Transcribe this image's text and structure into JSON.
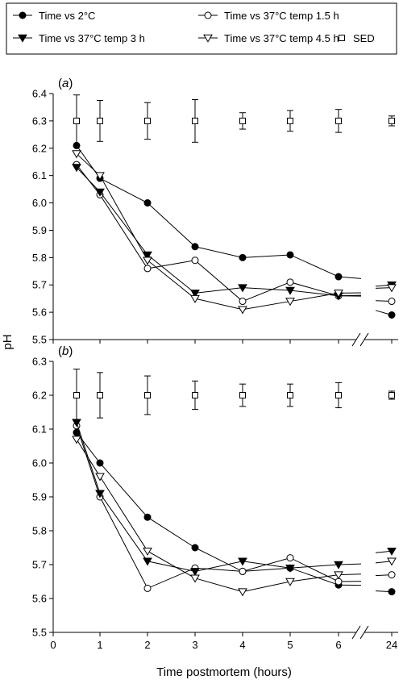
{
  "figure": {
    "ylabel": "pH",
    "xlabel": "Time postmortem (hours)"
  },
  "legend": {
    "entries": [
      {
        "label": "Time vs 2°C",
        "marker": "filled-circle"
      },
      {
        "label": "Time vs 37°C temp 1.5 h",
        "marker": "open-circle"
      },
      {
        "label": "Time vs 37°C temp 3 h",
        "marker": "filled-triangle-down"
      },
      {
        "label": "Time vs 37°C temp 4.5 h",
        "marker": "open-triangle-down"
      },
      {
        "label": "SED",
        "marker": "open-square"
      }
    ]
  },
  "colors": {
    "ink": "#000000",
    "background": "#ffffff"
  },
  "chart_data": [
    {
      "type": "line",
      "panel_label": "a",
      "x_ticks": [
        "0",
        "1",
        "2",
        "3",
        "4",
        "5",
        "6",
        "24"
      ],
      "x_axis_break": "between 6 and 24 hours",
      "ylim": [
        5.5,
        6.4
      ],
      "yticks": [
        "5.5",
        "5.6",
        "5.7",
        "5.8",
        "5.9",
        "6.0",
        "6.1",
        "6.2",
        "6.3",
        "6.4"
      ],
      "grid": false,
      "legend_placement": "top",
      "series": [
        {
          "name": "Time vs 2°C",
          "marker": "filled-circle",
          "points": [
            [
              0.5,
              6.21
            ],
            [
              1,
              6.09
            ],
            [
              2,
              6.0
            ],
            [
              3,
              5.84
            ],
            [
              4,
              5.8
            ],
            [
              5,
              5.81
            ],
            [
              6,
              5.73
            ],
            [
              24,
              5.59
            ]
          ]
        },
        {
          "name": "Time vs 37°C temp 1.5 h",
          "marker": "open-circle",
          "points": [
            [
              0.5,
              6.14
            ],
            [
              1,
              6.03
            ],
            [
              2,
              5.76
            ],
            [
              3,
              5.79
            ],
            [
              4,
              5.64
            ],
            [
              5,
              5.71
            ],
            [
              6,
              5.66
            ],
            [
              24,
              5.64
            ]
          ]
        },
        {
          "name": "Time vs 37°C temp 3 h",
          "marker": "filled-triangle-down",
          "points": [
            [
              0.5,
              6.13
            ],
            [
              1,
              6.04
            ],
            [
              2,
              5.81
            ],
            [
              3,
              5.67
            ],
            [
              4,
              5.69
            ],
            [
              5,
              5.68
            ],
            [
              6,
              5.66
            ],
            [
              24,
              5.7
            ]
          ]
        },
        {
          "name": "Time vs 37°C temp 4.5 h",
          "marker": "open-triangle-down",
          "points": [
            [
              0.5,
              6.18
            ],
            [
              1,
              6.1
            ],
            [
              2,
              5.79
            ],
            [
              3,
              5.65
            ],
            [
              4,
              5.61
            ],
            [
              5,
              5.64
            ],
            [
              6,
              5.67
            ],
            [
              24,
              5.69
            ]
          ]
        },
        {
          "name": "SED",
          "marker": "open-square",
          "error_bars": true,
          "points": [
            [
              0.5,
              6.3
            ],
            [
              1,
              6.3
            ],
            [
              2,
              6.3
            ],
            [
              3,
              6.3
            ],
            [
              4,
              6.3
            ],
            [
              5,
              6.3
            ],
            [
              6,
              6.3
            ],
            [
              24,
              6.3
            ]
          ],
          "errors": [
            0.095,
            0.075,
            0.067,
            0.078,
            0.03,
            0.038,
            0.042,
            0.018
          ]
        }
      ]
    },
    {
      "type": "line",
      "panel_label": "b",
      "x_ticks": [
        "0",
        "1",
        "2",
        "3",
        "4",
        "5",
        "6",
        "24"
      ],
      "x_axis_break": "between 6 and 24 hours",
      "ylim": [
        5.5,
        6.3
      ],
      "yticks": [
        "5.5",
        "5.6",
        "5.7",
        "5.8",
        "5.9",
        "6.0",
        "6.1",
        "6.2",
        "6.3"
      ],
      "grid": false,
      "series": [
        {
          "name": "Time vs 2°C",
          "marker": "filled-circle",
          "points": [
            [
              0.5,
              6.09
            ],
            [
              1,
              6.0
            ],
            [
              2,
              5.84
            ],
            [
              3,
              5.75
            ],
            [
              4,
              5.68
            ],
            [
              5,
              5.69
            ],
            [
              6,
              5.64
            ],
            [
              24,
              5.62
            ]
          ]
        },
        {
          "name": "Time vs 37°C temp 1.5 h",
          "marker": "open-circle",
          "points": [
            [
              0.5,
              6.11
            ],
            [
              1,
              5.9
            ],
            [
              2,
              5.63
            ],
            [
              3,
              5.69
            ],
            [
              4,
              5.68
            ],
            [
              5,
              5.72
            ],
            [
              6,
              5.65
            ],
            [
              24,
              5.67
            ]
          ]
        },
        {
          "name": "Time vs 37°C temp 3 h",
          "marker": "filled-triangle-down",
          "points": [
            [
              0.5,
              6.12
            ],
            [
              1,
              5.91
            ],
            [
              2,
              5.71
            ],
            [
              3,
              5.68
            ],
            [
              4,
              5.71
            ],
            [
              5,
              5.69
            ],
            [
              6,
              5.7
            ],
            [
              24,
              5.74
            ]
          ]
        },
        {
          "name": "Time vs 37°C temp 4.5 h",
          "marker": "open-triangle-down",
          "points": [
            [
              0.5,
              6.07
            ],
            [
              1,
              5.96
            ],
            [
              2,
              5.74
            ],
            [
              3,
              5.66
            ],
            [
              4,
              5.62
            ],
            [
              5,
              5.65
            ],
            [
              6,
              5.67
            ],
            [
              24,
              5.71
            ]
          ]
        },
        {
          "name": "SED",
          "marker": "open-square",
          "error_bars": true,
          "points": [
            [
              0.5,
              6.2
            ],
            [
              1,
              6.2
            ],
            [
              2,
              6.2
            ],
            [
              3,
              6.2
            ],
            [
              4,
              6.2
            ],
            [
              5,
              6.2
            ],
            [
              6,
              6.2
            ],
            [
              24,
              6.2
            ]
          ],
          "errors": [
            0.077,
            0.067,
            0.057,
            0.042,
            0.033,
            0.033,
            0.037,
            0.012
          ]
        }
      ]
    }
  ]
}
